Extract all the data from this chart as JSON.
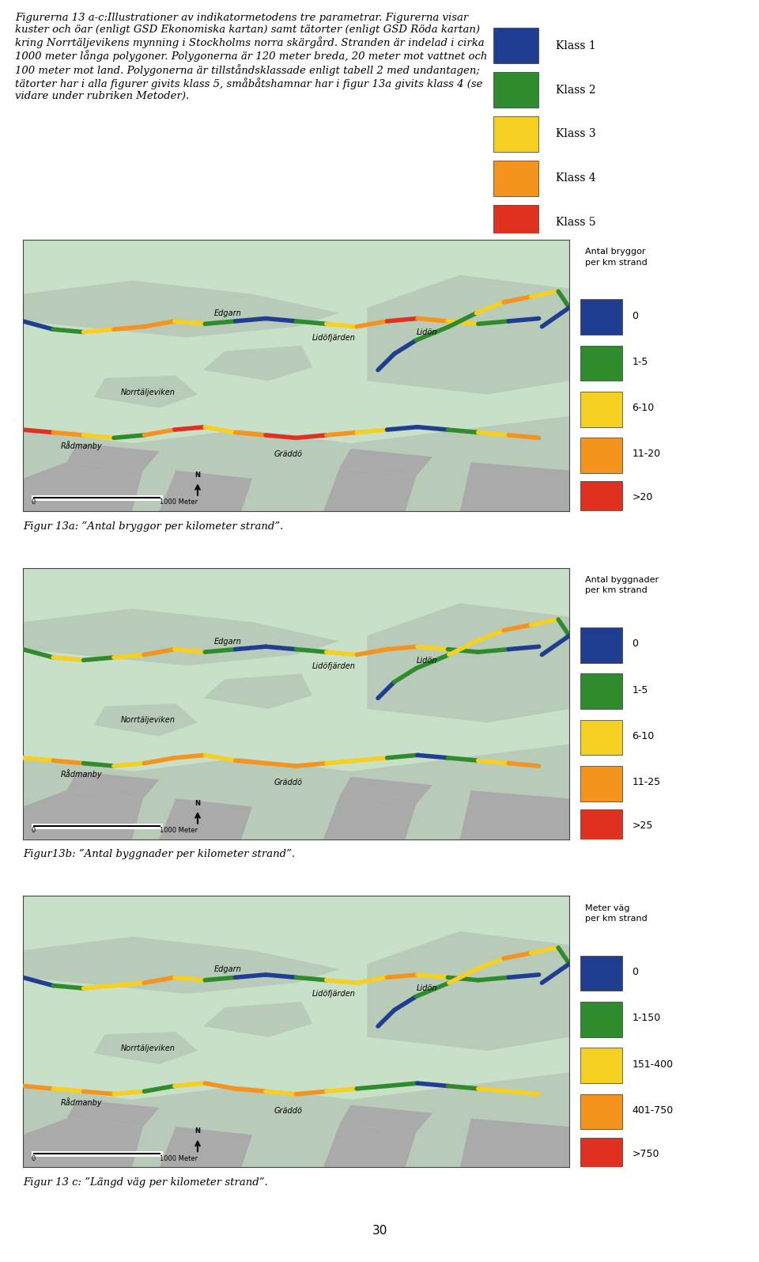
{
  "title_text": "Figurerna 13 a-c:Illustrationer av indikatormetodens tre parametrar. Figurerna visar\nkuster och öar (enligt GSD Ekonomiska kartan) samt tätorter (enligt GSD Röda kartan)\nkring Norrtäljevikens mynning i Stockholms norra skärgård. Stranden är indelad i cirka\n1000 meter långa polygoner. Polygonerna är 120 meter breda, 20 meter mot vattnet och\n100 meter mot land. Polygonerna är tillståndsklassade enligt tabell 2 med undantagen;\ntätorter har i alla figurer givits klass 5, småbåtshamnar har i figur 13a givits klass 4 (se\nvidare under rubriken Metoder).",
  "klass_labels": [
    "Klass 1",
    "Klass 2",
    "Klass 3",
    "Klass 4",
    "Klass 5"
  ],
  "klass_colors": [
    "#1f3d91",
    "#2e8b2e",
    "#f5d020",
    "#f5931f",
    "#e03020"
  ],
  "fig13a_legend_title": "Antal bryggor\nper km strand",
  "fig13a_legend_labels": [
    "0",
    "1-5",
    "6-10",
    "11-20",
    ">20"
  ],
  "fig13a_legend_colors": [
    "#1f3d91",
    "#2e8b2e",
    "#f5d020",
    "#f5931f",
    "#e03020"
  ],
  "fig13a_caption": "Figur 13a: ”Antal bryggor per kilometer strand”.",
  "fig13b_legend_title": "Antal byggnader\nper km strand",
  "fig13b_legend_labels": [
    "0",
    "1-5",
    "6-10",
    "11-25",
    ">25"
  ],
  "fig13b_legend_colors": [
    "#1f3d91",
    "#2e8b2e",
    "#f5d020",
    "#f5931f",
    "#e03020"
  ],
  "fig13b_caption": "Figur13b: ”Antal byggnader per kilometer strand”.",
  "fig13c_legend_title": "Meter väg\nper km strand",
  "fig13c_legend_labels": [
    "0",
    "1-150",
    "151-400",
    "401-750",
    ">750"
  ],
  "fig13c_legend_colors": [
    "#1f3d91",
    "#2e8b2e",
    "#f5d020",
    "#f5931f",
    "#e03020"
  ],
  "fig13c_caption": "Figur 13 c: ”Längd väg per kilometer strand”.",
  "page_number": "30",
  "bg_color": "#ffffff",
  "text_color": "#000000",
  "map_bg": "#c8dfc8",
  "map_land": "#b8cbb8",
  "map_border": "#666666",
  "shore_patterns": {
    "bottom_0": [
      4,
      3,
      2,
      1,
      3,
      4,
      2,
      3,
      4,
      4,
      3,
      2,
      0,
      0,
      1,
      2,
      3
    ],
    "bottom_1": [
      2,
      3,
      1,
      2,
      3,
      3,
      2,
      3,
      3,
      3,
      2,
      2,
      1,
      0,
      1,
      2,
      3
    ],
    "bottom_2": [
      3,
      2,
      3,
      2,
      1,
      2,
      3,
      3,
      2,
      3,
      2,
      1,
      1,
      0,
      1,
      2,
      2
    ],
    "top_0": [
      0,
      1,
      2,
      3,
      3,
      2,
      1,
      0,
      0,
      1,
      2,
      3,
      4,
      3,
      2,
      1,
      0
    ],
    "top_1": [
      1,
      2,
      1,
      2,
      3,
      2,
      1,
      0,
      0,
      1,
      2,
      3,
      3,
      2,
      1,
      1,
      0
    ],
    "top_2": [
      0,
      1,
      2,
      2,
      3,
      2,
      1,
      0,
      0,
      1,
      2,
      2,
      3,
      2,
      1,
      1,
      0
    ],
    "right_0": [
      0,
      0,
      1,
      1,
      2,
      3,
      2,
      1,
      0
    ],
    "right_1": [
      0,
      1,
      1,
      2,
      2,
      3,
      2,
      1,
      0
    ],
    "right_2": [
      0,
      0,
      1,
      2,
      2,
      3,
      2,
      1,
      0
    ]
  }
}
